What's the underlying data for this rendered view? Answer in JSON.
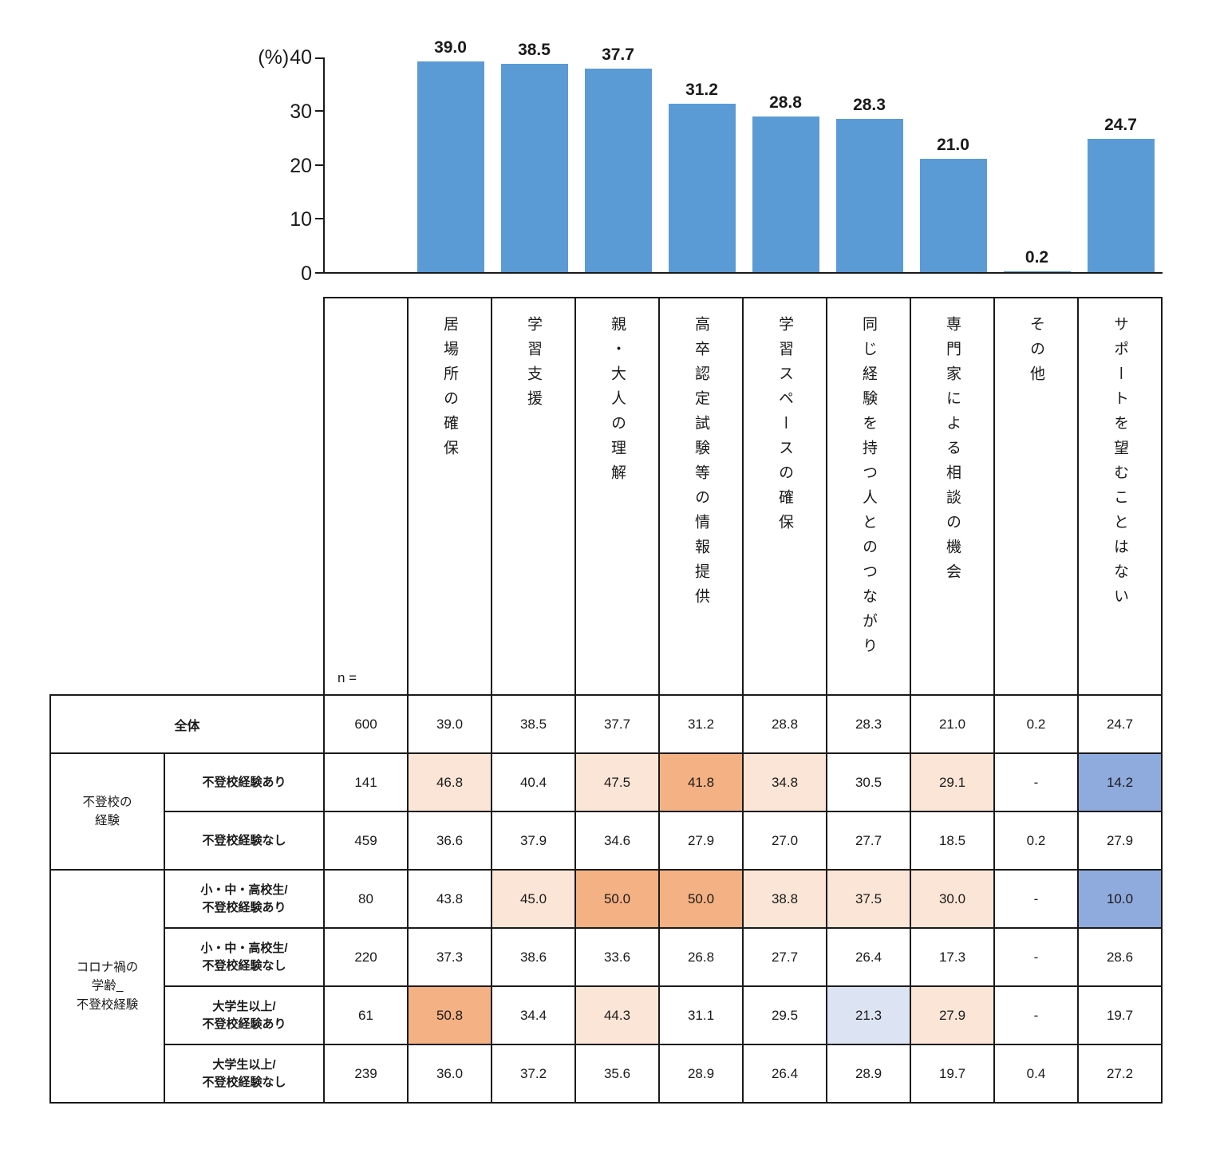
{
  "colors": {
    "bar_blue": "#5B9BD5",
    "light_orange": "#FBE5D6",
    "dark_orange": "#F4B183",
    "light_blue": "#DCE3F2",
    "medium_blue": "#8FAADC"
  },
  "chart": {
    "y_axis": {
      "unit": "(%)",
      "ticks": [
        0,
        10,
        20,
        30,
        40
      ],
      "max": 40
    }
  },
  "chart_data": {
    "type": "bar",
    "title": "",
    "xlabel": "",
    "ylabel": "(%)",
    "ylim": [
      0,
      40
    ],
    "grid": false,
    "legend": false,
    "categories": [
      "居場所の確保",
      "学習支援",
      "親・大人の理解",
      "高卒認定試験等の情報提供",
      "学習スペースの確保",
      "同じ経験を持つ人とのつながり",
      "専門家による相談の機会",
      "その他",
      "サポートを望むことはない"
    ],
    "values": [
      39.0,
      38.5,
      37.7,
      31.2,
      28.8,
      28.3,
      21.0,
      0.2,
      24.7
    ]
  },
  "table": {
    "n_label": "n =",
    "columns": [
      "居場所の確保",
      "学習支援",
      "親・大人の理解",
      "高卒認定試験等の情報提供",
      "学習スペースの確保",
      "同じ経験を持つ人とのつながり",
      "専門家による相談の機会",
      "その他",
      "サポートを望むことはない"
    ],
    "rows": [
      {
        "group": null,
        "merged_label": true,
        "label": "全体",
        "n": "600",
        "values": [
          "39.0",
          "38.5",
          "37.7",
          "31.2",
          "28.8",
          "28.3",
          "21.0",
          "0.2",
          "24.7"
        ],
        "marks": [
          "",
          "",
          "",
          "",
          "",
          "",
          "",
          "",
          ""
        ]
      },
      {
        "group": "不登校の\n経験",
        "group_rows": 2,
        "label": "不登校経験あり",
        "n": "141",
        "values": [
          "46.8",
          "40.4",
          "47.5",
          "41.8",
          "34.8",
          "30.5",
          "29.1",
          "-",
          "14.2"
        ],
        "marks": [
          "o1",
          "",
          "o1",
          "o2",
          "o1",
          "",
          "o1",
          "",
          "b2"
        ]
      },
      {
        "group": null,
        "label": "不登校経験なし",
        "n": "459",
        "values": [
          "36.6",
          "37.9",
          "34.6",
          "27.9",
          "27.0",
          "27.7",
          "18.5",
          "0.2",
          "27.9"
        ],
        "marks": [
          "",
          "",
          "",
          "",
          "",
          "",
          "",
          "",
          ""
        ]
      },
      {
        "group": "コロナ禍の\n学齢_\n不登校経験",
        "group_rows": 4,
        "label": "小・中・高校生/\n不登校経験あり",
        "n": "80",
        "values": [
          "43.8",
          "45.0",
          "50.0",
          "50.0",
          "38.8",
          "37.5",
          "30.0",
          "-",
          "10.0"
        ],
        "marks": [
          "",
          "o1",
          "o2",
          "o2",
          "o1",
          "o1",
          "o1",
          "",
          "b2"
        ]
      },
      {
        "group": null,
        "label": "小・中・高校生/\n不登校経験なし",
        "n": "220",
        "values": [
          "37.3",
          "38.6",
          "33.6",
          "26.8",
          "27.7",
          "26.4",
          "17.3",
          "-",
          "28.6"
        ],
        "marks": [
          "",
          "",
          "",
          "",
          "",
          "",
          "",
          "",
          ""
        ]
      },
      {
        "group": null,
        "label": "大学生以上/\n不登校経験あり",
        "n": "61",
        "values": [
          "50.8",
          "34.4",
          "44.3",
          "31.1",
          "29.5",
          "21.3",
          "27.9",
          "-",
          "19.7"
        ],
        "marks": [
          "o2",
          "",
          "o1",
          "",
          "",
          "b1",
          "o1",
          "",
          ""
        ]
      },
      {
        "group": null,
        "label": "大学生以上/\n不登校経験なし",
        "n": "239",
        "values": [
          "36.0",
          "37.2",
          "35.6",
          "28.9",
          "26.4",
          "28.9",
          "19.7",
          "0.4",
          "27.2"
        ],
        "marks": [
          "",
          "",
          "",
          "",
          "",
          "",
          "",
          "",
          ""
        ]
      }
    ]
  }
}
